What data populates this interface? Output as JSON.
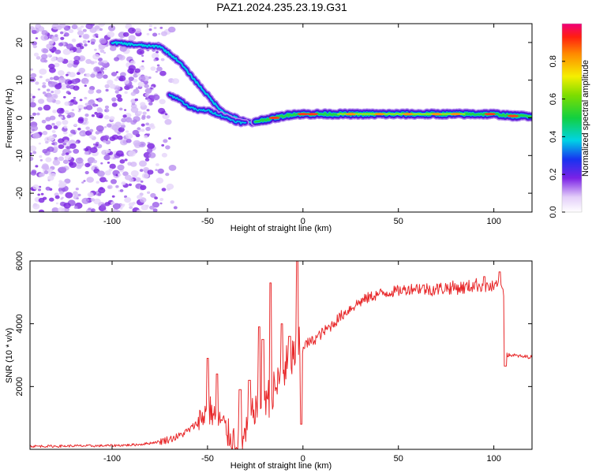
{
  "title": "PAZ1.2024.235.23.19.G31",
  "chart_data": [
    {
      "type": "heatmap",
      "xlabel": "Height of straight line (km)",
      "ylabel": "Frequency (Hz)",
      "xlim": [
        -143,
        120
      ],
      "ylim": [
        -25,
        25
      ],
      "xticks": [
        -100,
        -50,
        0,
        50,
        100
      ],
      "yticks": [
        -20,
        -10,
        0,
        10,
        20
      ],
      "colorbar": {
        "label": "Normalized spectral amplitude",
        "range": [
          0,
          1
        ],
        "ticks": [
          0.0,
          0.2,
          0.4,
          0.6,
          0.8
        ],
        "tick_labels": [
          "0.0",
          "0.2",
          "0.4",
          "0.6",
          "0.8"
        ]
      },
      "upper_trace": {
        "x": [
          -100,
          -90,
          -80,
          -75,
          -70,
          -65,
          -60,
          -55,
          -50,
          -45,
          -40,
          -35,
          -30,
          -25
        ],
        "freq": [
          20,
          19.5,
          19,
          19,
          17,
          15,
          12,
          9,
          6,
          3,
          1,
          0,
          -1,
          -1.5
        ]
      },
      "lower_trace": {
        "x": [
          -70,
          -65,
          -60,
          -55,
          -50,
          -45,
          -40,
          -35,
          -30
        ],
        "freq": [
          6,
          5,
          3,
          2,
          2,
          1,
          0,
          -1,
          -1.5
        ]
      },
      "carrier": {
        "x": [
          -25,
          -15,
          -5,
          0,
          10,
          30,
          50,
          70,
          85,
          100,
          110,
          120
        ],
        "freq": [
          -1,
          0,
          1,
          1,
          1,
          1,
          1,
          1,
          1,
          1,
          0.5,
          0.5
        ]
      }
    },
    {
      "type": "line",
      "xlabel": "Height of straight line (km)",
      "ylabel": "SNR (10 * v/v)",
      "xlim": [
        -143,
        120
      ],
      "ylim": [
        0,
        6000
      ],
      "xticks": [
        -100,
        -50,
        0,
        50,
        100
      ],
      "yticks": [
        2000,
        4000,
        6000
      ],
      "series": [
        {
          "color": "#e8282a",
          "x": [
            -143,
            -130,
            -120,
            -110,
            -100,
            -90,
            -85,
            -80,
            -75,
            -70,
            -65,
            -60,
            -55,
            -52,
            -50,
            -48,
            -46,
            -44,
            -42,
            -40,
            -38,
            -36,
            -34,
            -32,
            -30,
            -28,
            -26,
            -24,
            -22,
            -20,
            -18,
            -16,
            -14,
            -12,
            -10,
            -8,
            -6,
            -4,
            -2,
            0,
            5,
            10,
            15,
            20,
            25,
            30,
            35,
            40,
            45,
            50,
            55,
            60,
            65,
            70,
            75,
            80,
            85,
            88,
            90,
            95,
            100,
            103,
            105,
            106,
            107,
            108,
            110,
            115,
            120
          ],
          "y": [
            100,
            100,
            110,
            110,
            120,
            140,
            160,
            200,
            250,
            320,
            420,
            600,
            850,
            1100,
            1300,
            1200,
            1050,
            950,
            800,
            550,
            400,
            350,
            300,
            250,
            450,
            900,
            1200,
            1400,
            1600,
            1800,
            1600,
            1700,
            2000,
            2200,
            2500,
            2700,
            2900,
            3100,
            3200,
            3300,
            3450,
            3700,
            3950,
            4250,
            4500,
            4700,
            4850,
            4950,
            5000,
            5050,
            5100,
            5150,
            5100,
            5100,
            5150,
            5150,
            5150,
            5200,
            5250,
            5200,
            5150,
            5200,
            5100,
            4000,
            3000,
            3000,
            3000,
            2950,
            2950
          ]
        }
      ],
      "spikes": [
        {
          "x": -50,
          "y": 2900
        },
        {
          "x": -45,
          "y": 2400
        },
        {
          "x": -33,
          "y": 1900
        },
        {
          "x": -28,
          "y": 2200
        },
        {
          "x": -23,
          "y": 3900
        },
        {
          "x": -21,
          "y": 3500
        },
        {
          "x": -17,
          "y": 5300
        },
        {
          "x": -11,
          "y": 4000
        },
        {
          "x": -7,
          "y": 3600
        },
        {
          "x": -3,
          "y": 6000
        },
        {
          "x": -1,
          "y": 800
        },
        {
          "x": 95,
          "y": 5500
        },
        {
          "x": 103,
          "y": 5650
        },
        {
          "x": 106,
          "y": 2650
        }
      ]
    }
  ]
}
